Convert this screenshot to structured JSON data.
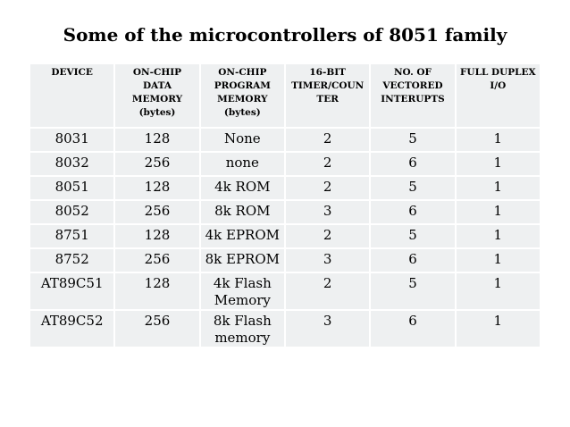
{
  "header": {
    "title": "Some of the microcontrollers of 8051 family"
  },
  "table": {
    "columns": [
      "DEVICE",
      "ON-CHIP\nDATA\nMEMORY\n(bytes)",
      "ON-CHIP\nPROGRAM\nMEMORY\n(bytes)",
      "16-BIT\nTIMER/COUN\nTER",
      "NO. OF\nVECTORED\nINTERUPTS",
      "FULL DUPLEX\nI/O"
    ],
    "rows": [
      [
        "8031",
        "128",
        "None",
        "2",
        "5",
        "1"
      ],
      [
        "8032",
        "256",
        "none",
        "2",
        "6",
        "1"
      ],
      [
        "8051",
        "128",
        "4k ROM",
        "2",
        "5",
        "1"
      ],
      [
        "8052",
        "256",
        "8k ROM",
        "3",
        "6",
        "1"
      ],
      [
        "8751",
        "128",
        "4k EPROM",
        "2",
        "5",
        "1"
      ],
      [
        "8752",
        "256",
        "8k EPROM",
        "3",
        "6",
        "1"
      ],
      [
        "AT89C51",
        "128",
        "4k Flash\nMemory",
        "2",
        "5",
        "1"
      ],
      [
        "AT89C52",
        "256",
        "8k Flash\nmemory",
        "3",
        "6",
        "1"
      ]
    ]
  }
}
